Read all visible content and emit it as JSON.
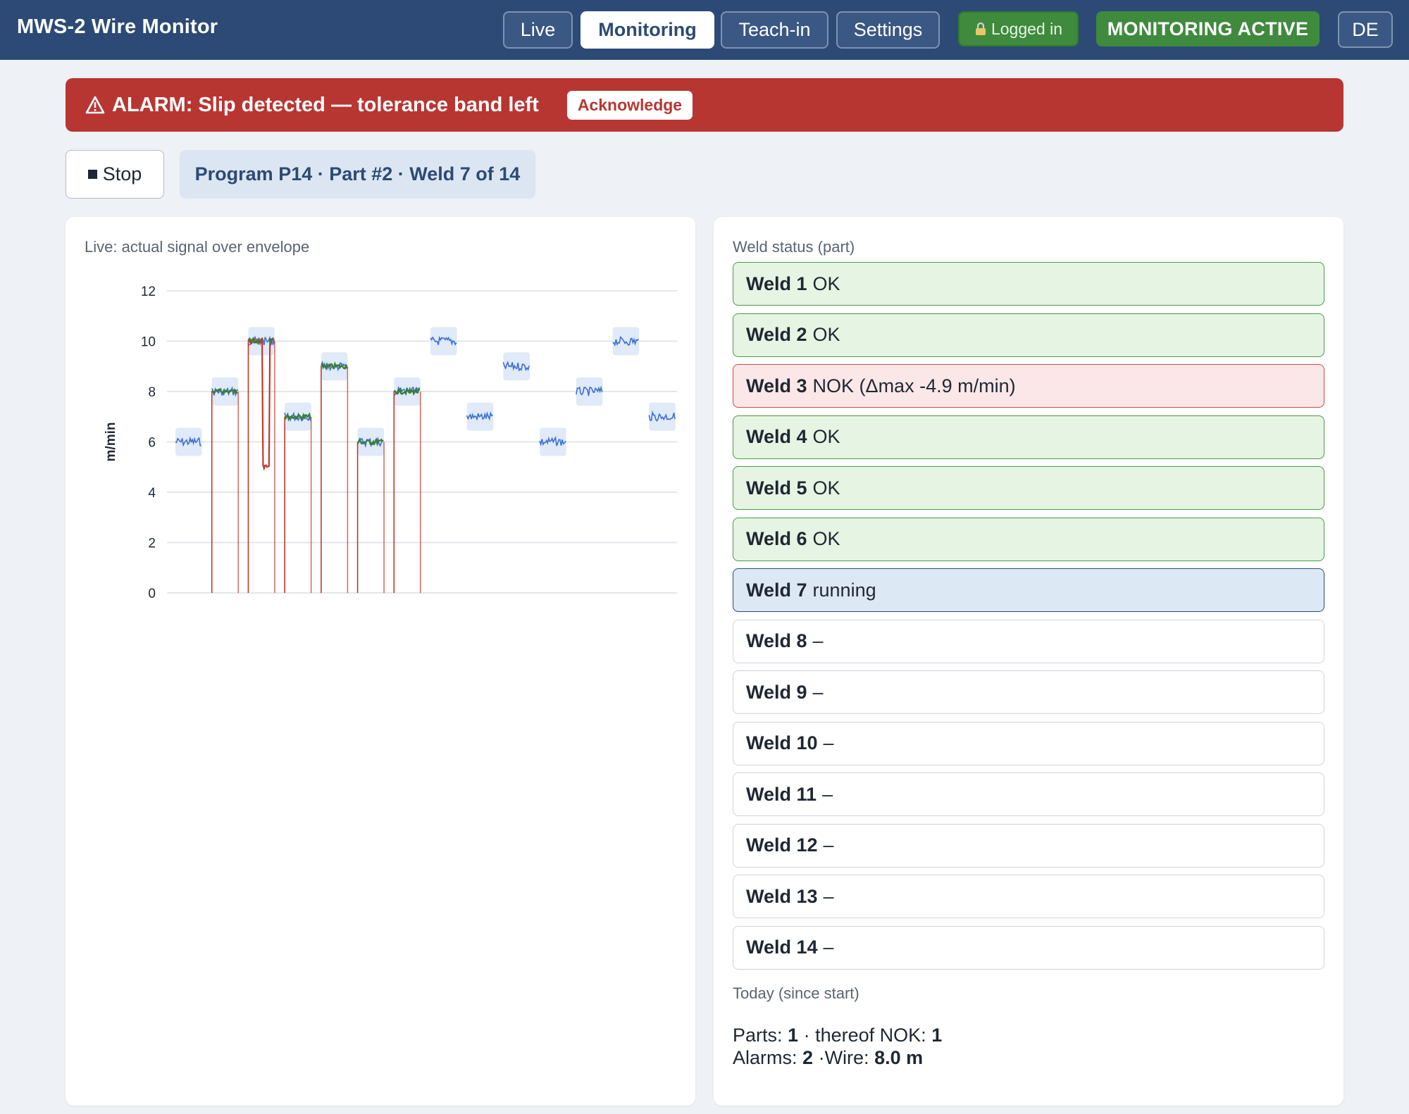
{
  "app": {
    "title": "MWS-2 Wire Monitor"
  },
  "nav": {
    "tabs": [
      {
        "label": "Live",
        "active": false
      },
      {
        "label": "Monitoring",
        "active": true
      },
      {
        "label": "Teach-in",
        "active": false
      },
      {
        "label": "Settings",
        "active": false
      }
    ],
    "login_label": "Logged in",
    "login_icon": "lock-icon",
    "status_label": "MONITORING ACTIVE",
    "language_label": "DE"
  },
  "alarm": {
    "icon": "warning-icon",
    "text": "ALARM: Slip detected — tolerance band left",
    "ack_label": "Acknowledge"
  },
  "controls": {
    "stop_label": "Stop",
    "program_info": "Program P14 · Part #2 · Weld 7 of 14"
  },
  "chart": {
    "title": "Live: actual signal over envelope"
  },
  "chart_data": {
    "type": "line",
    "xlabel": "",
    "ylabel": "m/min",
    "ylim": [
      0,
      12
    ],
    "yticks": [
      0,
      2,
      4,
      6,
      8,
      10,
      12
    ],
    "grid": true,
    "segments": [
      {
        "weld": 1,
        "level": 6,
        "trace": "envelope"
      },
      {
        "weld": 2,
        "level": 8,
        "trace": "actual"
      },
      {
        "weld": 3,
        "level": 10,
        "trace": "actual",
        "dip_to": 5,
        "alarm": true
      },
      {
        "weld": 4,
        "level": 7,
        "trace": "actual"
      },
      {
        "weld": 5,
        "level": 9,
        "trace": "actual"
      },
      {
        "weld": 6,
        "level": 6,
        "trace": "actual"
      },
      {
        "weld": 7,
        "level": 8,
        "trace": "actual"
      },
      {
        "weld": 8,
        "level": 10,
        "trace": "envelope"
      },
      {
        "weld": 9,
        "level": 7,
        "trace": "envelope"
      },
      {
        "weld": 10,
        "level": 9,
        "trace": "envelope"
      },
      {
        "weld": 11,
        "level": 6,
        "trace": "envelope"
      },
      {
        "weld": 12,
        "level": 8,
        "trace": "envelope"
      },
      {
        "weld": 13,
        "level": 10,
        "trace": "envelope"
      },
      {
        "weld": 14,
        "level": 7,
        "trace": "envelope"
      }
    ],
    "colors": {
      "envelope": "#3b6fd6",
      "band": "#dbe6f7",
      "actual": "#3a7d3a",
      "alarm": "#c0392b",
      "grid": "#e3e6ea"
    }
  },
  "welds": {
    "title": "Weld status (part)",
    "items": [
      {
        "name": "Weld 1",
        "status": "OK",
        "state": "ok"
      },
      {
        "name": "Weld 2",
        "status": "OK",
        "state": "ok"
      },
      {
        "name": "Weld 3",
        "status": "NOK (Δmax -4.9 m/min)",
        "state": "nok"
      },
      {
        "name": "Weld 4",
        "status": "OK",
        "state": "ok"
      },
      {
        "name": "Weld 5",
        "status": "OK",
        "state": "ok"
      },
      {
        "name": "Weld 6",
        "status": "OK",
        "state": "ok"
      },
      {
        "name": "Weld 7",
        "status": "running",
        "state": "running"
      },
      {
        "name": "Weld 8",
        "status": "–",
        "state": "pending"
      },
      {
        "name": "Weld 9",
        "status": "–",
        "state": "pending"
      },
      {
        "name": "Weld 10",
        "status": "–",
        "state": "pending"
      },
      {
        "name": "Weld 11",
        "status": "–",
        "state": "pending"
      },
      {
        "name": "Weld 12",
        "status": "–",
        "state": "pending"
      },
      {
        "name": "Weld 13",
        "status": "–",
        "state": "pending"
      },
      {
        "name": "Weld 14",
        "status": "–",
        "state": "pending"
      }
    ]
  },
  "today": {
    "title": "Today (since start)",
    "parts_label": "Parts:",
    "parts_value": "1",
    "nok_label": "· thereof NOK:",
    "nok_value": "1",
    "alarms_label": "Alarms:",
    "alarms_value": "2",
    "wire_label": "·Wire:",
    "wire_value": "8.0 m"
  }
}
